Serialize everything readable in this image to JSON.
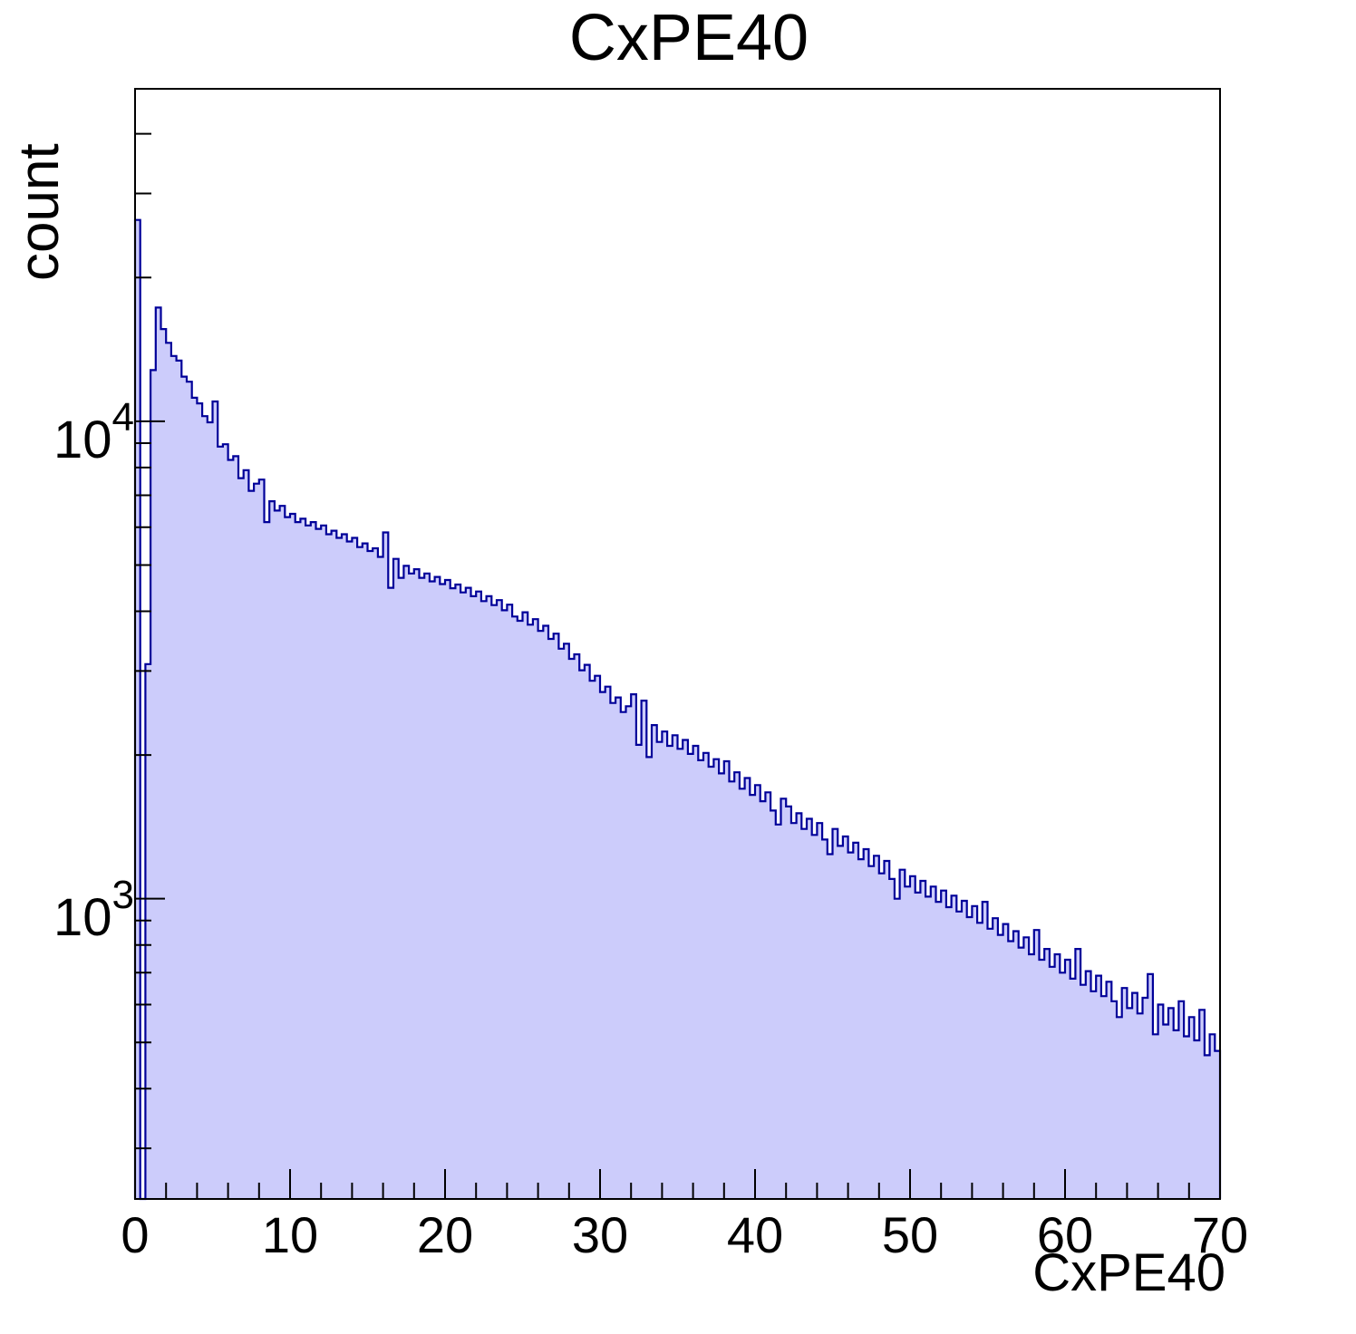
{
  "page": {
    "background": "#ffffff"
  },
  "chart_data": {
    "type": "bar",
    "subtype": "histogram-step-filled",
    "title": "CxPE40",
    "xlabel": "CxPE40",
    "ylabel": "count",
    "x_min": 0,
    "x_max": 70,
    "y_min": 235,
    "y_max": 49700,
    "y_scale": "log",
    "grid": "off",
    "legend": "none",
    "x_major_ticks": [
      0,
      10,
      20,
      30,
      40,
      50,
      60,
      70
    ],
    "x_major_tick_labels": [
      "0",
      "10",
      "20",
      "30",
      "40",
      "50",
      "60",
      "70"
    ],
    "x_minor_tick_step": 2,
    "y_decade_labels": [
      {
        "mantissa": "10",
        "exponent": "3",
        "value": 1000
      },
      {
        "mantissa": "10",
        "exponent": "4",
        "value": 10000
      }
    ],
    "bin_start": 0,
    "bin_width": 0.33333,
    "bin_count": 210,
    "values": [
      26400,
      150,
      3100,
      12800,
      17300,
      15600,
      14600,
      13700,
      13400,
      12400,
      12100,
      11200,
      10900,
      10250,
      9950,
      11000,
      8850,
      8950,
      8300,
      8450,
      7600,
      7900,
      7150,
      7400,
      7550,
      6150,
      6800,
      6500,
      6650,
      6300,
      6400,
      6150,
      6250,
      6050,
      6150,
      5950,
      6050,
      5800,
      5900,
      5700,
      5800,
      5600,
      5700,
      5450,
      5550,
      5350,
      5420,
      5200,
      5850,
      4480,
      5150,
      4700,
      4980,
      4800,
      4900,
      4700,
      4800,
      4620,
      4720,
      4560,
      4650,
      4470,
      4550,
      4380,
      4480,
      4300,
      4400,
      4200,
      4300,
      4120,
      4220,
      4020,
      4130,
      3900,
      3820,
      3980,
      3750,
      3850,
      3640,
      3730,
      3500,
      3590,
      3340,
      3420,
      3180,
      3250,
      3010,
      3090,
      2860,
      2930,
      2710,
      2780,
      2570,
      2640,
      2460,
      2530,
      2680,
      2100,
      2600,
      1980,
      2310,
      2130,
      2240,
      2090,
      2200,
      2060,
      2150,
      2010,
      2090,
      1950,
      2020,
      1890,
      1960,
      1830,
      1940,
      1760,
      1840,
      1700,
      1790,
      1650,
      1730,
      1600,
      1670,
      1530,
      1430,
      1620,
      1560,
      1440,
      1510,
      1400,
      1470,
      1360,
      1440,
      1330,
      1240,
      1400,
      1290,
      1350,
      1250,
      1310,
      1210,
      1270,
      1170,
      1230,
      1130,
      1200,
      1100,
      1000,
      1150,
      1060,
      1115,
      1030,
      1090,
      1010,
      1060,
      985,
      1040,
      960,
      1015,
      940,
      990,
      915,
      965,
      890,
      985,
      865,
      910,
      840,
      885,
      815,
      855,
      790,
      830,
      765,
      860,
      745,
      785,
      720,
      765,
      700,
      745,
      680,
      785,
      660,
      705,
      640,
      690,
      625,
      670,
      610,
      565,
      650,
      590,
      635,
      575,
      620,
      695,
      520,
      600,
      545,
      590,
      530,
      610,
      515,
      565,
      505,
      585,
      470,
      520,
      480
    ],
    "colors": {
      "fill": "#ccccfb",
      "line": "#000099",
      "axis": "#000000",
      "text": "#000000"
    }
  }
}
